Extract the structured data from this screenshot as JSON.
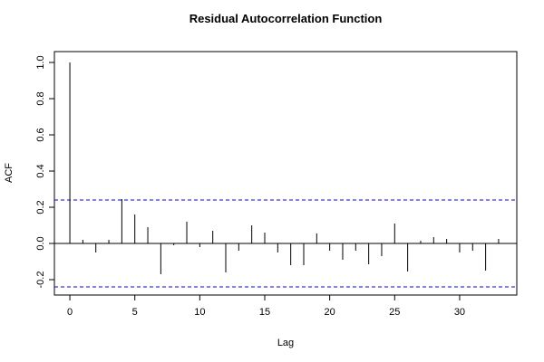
{
  "chart_data": {
    "type": "bar",
    "title": "Residual Autocorrelation Function",
    "xlabel": "Lag",
    "ylabel": "ACF",
    "x": [
      0,
      1,
      2,
      3,
      4,
      5,
      6,
      7,
      8,
      9,
      10,
      11,
      12,
      13,
      14,
      15,
      16,
      17,
      18,
      19,
      20,
      21,
      22,
      23,
      24,
      25,
      26,
      27,
      28,
      29,
      30,
      31,
      32,
      33
    ],
    "values": [
      1.0,
      0.02,
      -0.05,
      0.02,
      0.245,
      0.16,
      0.09,
      -0.17,
      -0.01,
      0.12,
      -0.02,
      0.07,
      -0.16,
      -0.04,
      0.1,
      0.06,
      -0.05,
      -0.12,
      -0.12,
      0.055,
      -0.04,
      -0.09,
      -0.04,
      -0.115,
      -0.07,
      0.11,
      -0.155,
      0.015,
      0.035,
      0.025,
      -0.05,
      -0.04,
      -0.15,
      0.025
    ],
    "color": "#000000",
    "confidence_bounds": [
      0.24,
      -0.24
    ],
    "confidence_color": "#0000ff",
    "xlim": [
      -1.19,
      34.4
    ],
    "xticks": [
      0,
      5,
      10,
      15,
      20,
      25,
      30
    ],
    "ylim": [
      -0.285,
      1.06
    ],
    "yticks": [
      -0.2,
      {
        "value": 0,
        "label": "0.0"
      },
      0.2,
      0.4,
      0.6,
      0.8,
      {
        "value": 1,
        "label": "1.0"
      }
    ]
  }
}
